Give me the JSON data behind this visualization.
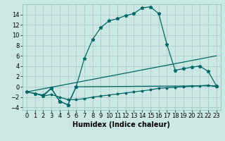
{
  "title": "",
  "xlabel": "Humidex (Indice chaleur)",
  "bg_color": "#cce8e4",
  "grid_color": "#aacccc",
  "line_color": "#006666",
  "xlim": [
    -0.5,
    23.5
  ],
  "ylim": [
    -4.5,
    16.0
  ],
  "xticks": [
    0,
    1,
    2,
    3,
    4,
    5,
    6,
    7,
    8,
    9,
    10,
    11,
    12,
    13,
    14,
    15,
    16,
    17,
    18,
    19,
    20,
    21,
    22,
    23
  ],
  "yticks": [
    -4,
    -2,
    0,
    2,
    4,
    6,
    8,
    10,
    12,
    14
  ],
  "line1_x": [
    0,
    1,
    2,
    3,
    4,
    5,
    6,
    7,
    8,
    9,
    10,
    11,
    12,
    13,
    14,
    15,
    16,
    17,
    18,
    19,
    20,
    21,
    22,
    23
  ],
  "line1_y": [
    -1.0,
    -1.3,
    -1.6,
    -0.3,
    -2.8,
    -3.5,
    -0.0,
    5.5,
    9.2,
    11.5,
    12.8,
    13.2,
    13.8,
    14.2,
    15.3,
    15.5,
    14.2,
    8.2,
    3.2,
    3.5,
    3.8,
    4.0,
    3.0,
    0.2
  ],
  "line2_x": [
    0,
    1,
    2,
    3,
    4,
    5,
    6,
    7,
    8,
    9,
    10,
    11,
    12,
    13,
    14,
    15,
    16,
    17,
    18,
    19,
    20,
    21,
    22,
    23
  ],
  "line2_y": [
    -1.0,
    -1.3,
    -1.8,
    -1.5,
    -2.0,
    -2.5,
    -2.5,
    -2.3,
    -2.0,
    -1.8,
    -1.6,
    -1.4,
    -1.2,
    -1.0,
    -0.8,
    -0.6,
    -0.3,
    -0.2,
    -0.1,
    0.0,
    0.1,
    0.2,
    0.3,
    0.0
  ],
  "line3_x": [
    2,
    3,
    4,
    5,
    6,
    23
  ],
  "line3_y": [
    -1.8,
    -0.3,
    -2.8,
    -3.5,
    -0.0,
    0.2
  ],
  "line4_x": [
    0,
    23
  ],
  "line4_y": [
    -1.0,
    6.0
  ],
  "xlabel_fontsize": 7,
  "tick_fontsize": 6
}
